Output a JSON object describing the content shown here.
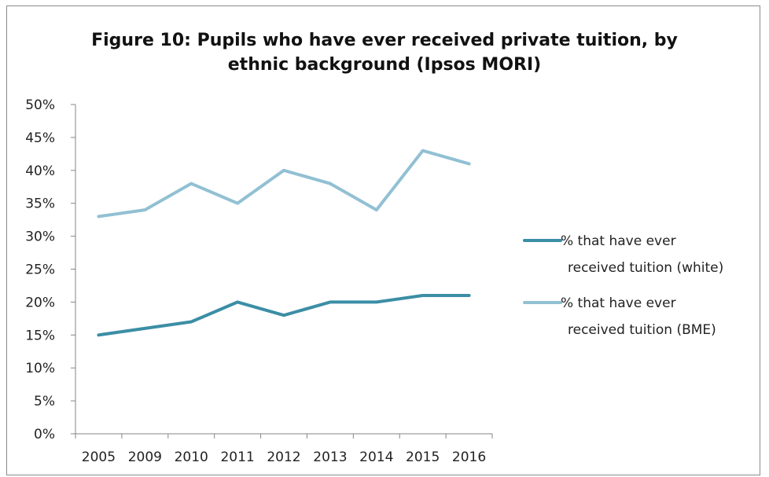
{
  "chart_data": {
    "type": "line",
    "title_line1": "Figure 10: Pupils who have ever received private tuition, by",
    "title_line2": "ethnic background (Ipsos MORI)",
    "categories": [
      "2005",
      "2009",
      "2010",
      "2011",
      "2012",
      "2013",
      "2014",
      "2015",
      "2016"
    ],
    "series": [
      {
        "name_line1": "% that have ever",
        "name_line2": "received tuition (white)",
        "color": "#3b8ea5",
        "values": [
          15,
          16,
          17,
          20,
          18,
          20,
          20,
          21,
          21
        ]
      },
      {
        "name_line1": "% that have ever",
        "name_line2": "received tuition (BME)",
        "color": "#92c0d3",
        "values": [
          33,
          34,
          38,
          35,
          40,
          38,
          34,
          43,
          41
        ]
      }
    ],
    "y_ticks": [
      "0%",
      "5%",
      "10%",
      "15%",
      "20%",
      "25%",
      "30%",
      "35%",
      "40%",
      "45%",
      "50%"
    ],
    "ylim": [
      0,
      50
    ],
    "grid": false,
    "legend_position": "right"
  }
}
